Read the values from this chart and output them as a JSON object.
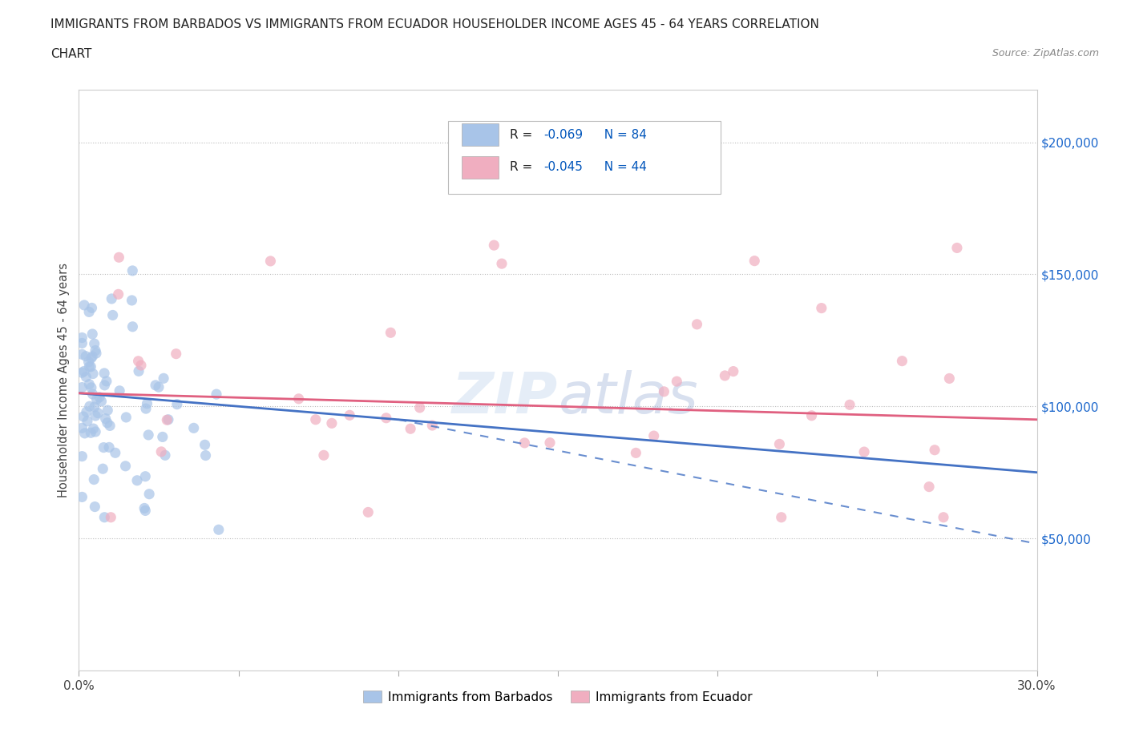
{
  "title_line1": "IMMIGRANTS FROM BARBADOS VS IMMIGRANTS FROM ECUADOR HOUSEHOLDER INCOME AGES 45 - 64 YEARS CORRELATION",
  "title_line2": "CHART",
  "source": "Source: ZipAtlas.com",
  "ylabel": "Householder Income Ages 45 - 64 years",
  "xlim": [
    0.0,
    0.3
  ],
  "ylim": [
    0,
    220000
  ],
  "x_ticks": [
    0.0,
    0.05,
    0.1,
    0.15,
    0.2,
    0.25,
    0.3
  ],
  "x_tick_labels": [
    "0.0%",
    "",
    "",
    "",
    "",
    "",
    "30.0%"
  ],
  "y_ticks": [
    50000,
    100000,
    150000,
    200000
  ],
  "barbados_R": -0.069,
  "barbados_N": 84,
  "ecuador_R": -0.045,
  "ecuador_N": 44,
  "barbados_color": "#a8c4e8",
  "ecuador_color": "#f0aec0",
  "barbados_line_color": "#4472c4",
  "ecuador_line_color": "#e06080",
  "legend_r_color": "#0055bb",
  "watermark_color": "#d0dff0",
  "watermark_text_color": "#b0c8e8"
}
